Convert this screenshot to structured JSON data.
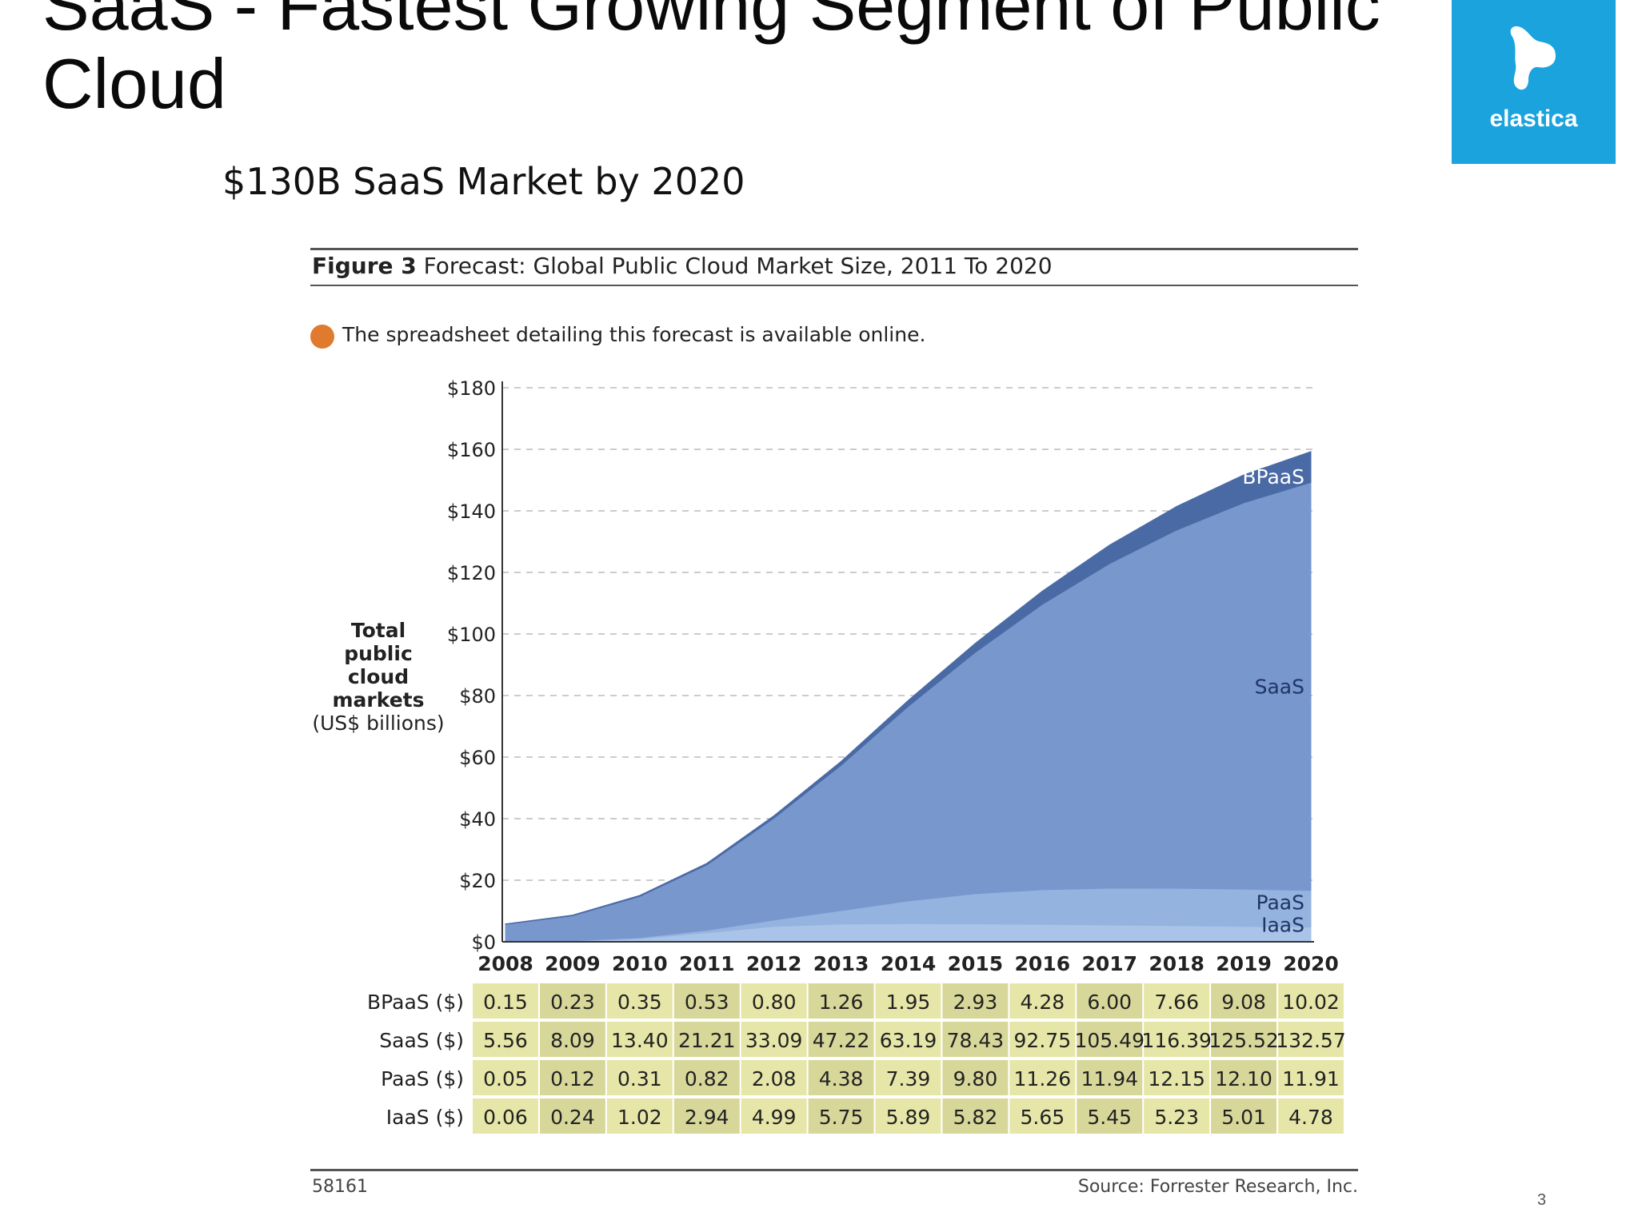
{
  "slide": {
    "title_line1": "SaaS - Fastest Growing Segment of Public",
    "title_line2": "Cloud",
    "subtitle": "$130B SaaS Market by 2020",
    "page_number": "3"
  },
  "logo": {
    "text": "elastica",
    "icon": "elastica-logo-icon",
    "bg_color": "#1aa3dc"
  },
  "figure": {
    "label": "Figure 3",
    "title": "Forecast: Global Public Cloud Market Size, 2011 To 2020",
    "note": "The spreadsheet detailing this forecast is available online.",
    "ylabel_line1": "Total",
    "ylabel_line2": "public cloud",
    "ylabel_line3": "markets",
    "ylabel_line4": "(US$ billions)",
    "figure_id": "58161",
    "source": "Source: Forrester Research, Inc."
  },
  "chart_data": {
    "type": "area",
    "stacked": true,
    "x": [
      "2008",
      "2009",
      "2010",
      "2011",
      "2012",
      "2013",
      "2014",
      "2015",
      "2016",
      "2017",
      "2018",
      "2019",
      "2020"
    ],
    "yticks": [
      "$180",
      "$160",
      "$140",
      "$120",
      "$100",
      "$80",
      "$60",
      "$40",
      "$20",
      "$0"
    ],
    "ylim": [
      0,
      180
    ],
    "grid": true,
    "series": [
      {
        "name": "IaaS",
        "row_label": "IaaS ($)",
        "color": "#a9c4e8",
        "values": [
          0.06,
          0.24,
          1.02,
          2.94,
          4.99,
          5.75,
          5.89,
          5.82,
          5.65,
          5.45,
          5.23,
          5.01,
          4.78
        ],
        "display": [
          "0.06",
          "0.24",
          "1.02",
          "2.94",
          "4.99",
          "5.75",
          "5.89",
          "5.82",
          "5.65",
          "5.45",
          "5.23",
          "5.01",
          "4.78"
        ]
      },
      {
        "name": "PaaS",
        "row_label": "PaaS ($)",
        "color": "#94b3df",
        "values": [
          0.05,
          0.12,
          0.31,
          0.82,
          2.08,
          4.38,
          7.39,
          9.8,
          11.26,
          11.94,
          12.15,
          12.1,
          11.91
        ],
        "display": [
          "0.05",
          "0.12",
          "0.31",
          "0.82",
          "2.08",
          "4.38",
          "7.39",
          "9.80",
          "11.26",
          "11.94",
          "12.15",
          "12.10",
          "11.91"
        ]
      },
      {
        "name": "SaaS",
        "row_label": "SaaS ($)",
        "color": "#7897cd",
        "values": [
          5.56,
          8.09,
          13.4,
          21.21,
          33.09,
          47.22,
          63.19,
          78.43,
          92.75,
          105.49,
          116.39,
          125.52,
          132.57
        ],
        "display": [
          "5.56",
          "8.09",
          "13.40",
          "21.21",
          "33.09",
          "47.22",
          "63.19",
          "78.43",
          "92.75",
          "105.49",
          "116.39",
          "125.52",
          "132.57"
        ]
      },
      {
        "name": "BPaaS",
        "row_label": "BPaaS ($)",
        "color": "#4a6aa6",
        "values": [
          0.15,
          0.23,
          0.35,
          0.53,
          0.8,
          1.26,
          1.95,
          2.93,
          4.28,
          6.0,
          7.66,
          9.08,
          10.02
        ],
        "display": [
          "0.15",
          "0.23",
          "0.35",
          "0.53",
          "0.80",
          "1.26",
          "1.95",
          "2.93",
          "4.28",
          "6.00",
          "7.66",
          "9.08",
          "10.02"
        ]
      }
    ],
    "table_order": [
      "BPaaS",
      "SaaS",
      "PaaS",
      "IaaS"
    ],
    "table_colors": [
      "#e6e6a8",
      "#d7d79a"
    ]
  }
}
